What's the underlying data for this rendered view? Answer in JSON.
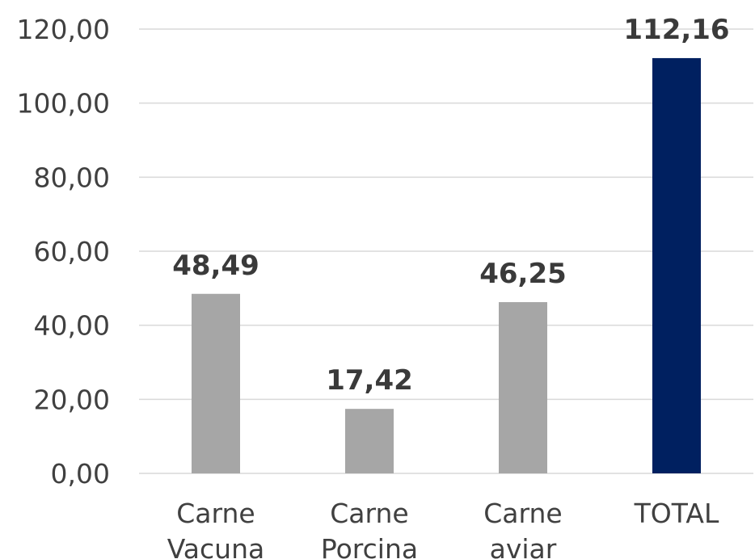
{
  "chart_data": {
    "type": "bar",
    "categories": [
      [
        "Carne",
        "Vacuna"
      ],
      [
        "Carne",
        "Porcina"
      ],
      [
        "Carne",
        "aviar"
      ],
      [
        "TOTAL"
      ]
    ],
    "values": [
      48.49,
      17.42,
      46.25,
      112.16
    ],
    "data_labels": [
      "48,49",
      "17,42",
      "46,25",
      "112,16"
    ],
    "bar_colors": [
      "#a6a6a6",
      "#a6a6a6",
      "#a6a6a6",
      "#002060"
    ],
    "ylim": [
      0,
      120
    ],
    "yticks": [
      0,
      20,
      40,
      60,
      80,
      100,
      120
    ],
    "ytick_labels": [
      "0,00",
      "20,00",
      "40,00",
      "60,00",
      "80,00",
      "100,00",
      "120,00"
    ],
    "grid": true,
    "legend": "none",
    "title": "",
    "xlabel": "",
    "ylabel": ""
  }
}
